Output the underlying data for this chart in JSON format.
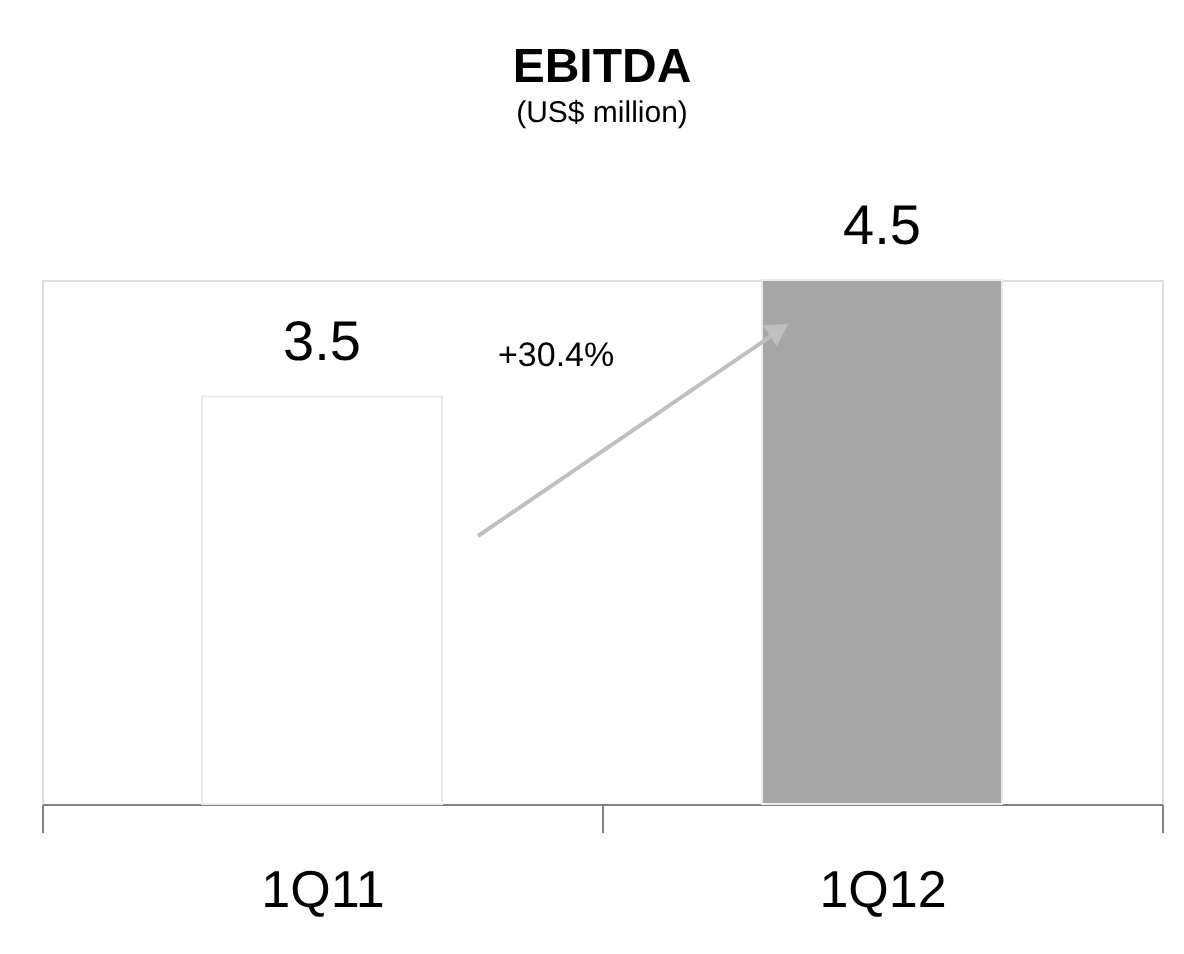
{
  "chart_data": {
    "type": "bar",
    "title": "EBITDA",
    "subtitle": "(US$ million)",
    "categories": [
      "1Q11",
      "1Q12"
    ],
    "values": [
      3.5,
      4.5
    ],
    "colors": [
      "#ffffff",
      "#a6a6a6"
    ],
    "data_labels": true,
    "annotations": [
      "+30.4%"
    ],
    "grid": false
  }
}
